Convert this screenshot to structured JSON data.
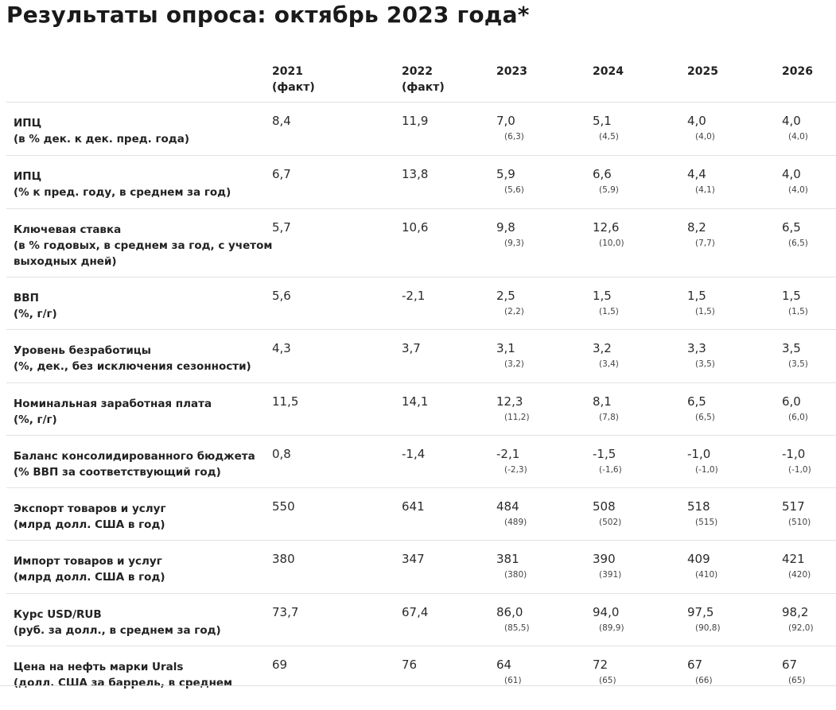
{
  "title": "Результаты опроса: октябрь 2023 года*",
  "columns": [
    {
      "year": "2021",
      "note": "(факт)"
    },
    {
      "year": "2022",
      "note": "(факт)"
    },
    {
      "year": "2023",
      "note": ""
    },
    {
      "year": "2024",
      "note": ""
    },
    {
      "year": "2025",
      "note": ""
    },
    {
      "year": "2026",
      "note": ""
    }
  ],
  "rows": [
    {
      "label": [
        "ИПЦ",
        "(в % дек. к дек. пред. года)"
      ],
      "values": [
        "8,4",
        "11,9",
        "7,0",
        "5,1",
        "4,0",
        "4,0"
      ],
      "prev": [
        "",
        "",
        "(6,3)",
        "(4,5)",
        "(4,0)",
        "(4,0)"
      ]
    },
    {
      "label": [
        "ИПЦ",
        "(% к пред. году, в среднем за год)"
      ],
      "values": [
        "6,7",
        "13,8",
        "5,9",
        "6,6",
        "4,4",
        "4,0"
      ],
      "prev": [
        "",
        "",
        "(5,6)",
        "(5,9)",
        "(4,1)",
        "(4,0)"
      ]
    },
    {
      "label": [
        "Ключевая ставка",
        "(в % годовых, в среднем за год, с учетом",
        "выходных дней)"
      ],
      "values": [
        "5,7",
        "10,6",
        "9,8",
        "12,6",
        "8,2",
        "6,5"
      ],
      "prev": [
        "",
        "",
        "(9,3)",
        "(10,0)",
        "(7,7)",
        "(6,5)"
      ]
    },
    {
      "label": [
        "ВВП",
        "(%, г/г)"
      ],
      "values": [
        "5,6",
        "-2,1",
        "2,5",
        "1,5",
        "1,5",
        "1,5"
      ],
      "prev": [
        "",
        "",
        "(2,2)",
        "(1,5)",
        "(1,5)",
        "(1,5)"
      ]
    },
    {
      "label": [
        "Уровень безработицы",
        "(%, дек., без исключения сезонности)"
      ],
      "values": [
        "4,3",
        "3,7",
        "3,1",
        "3,2",
        "3,3",
        "3,5"
      ],
      "prev": [
        "",
        "",
        "(3,2)",
        "(3,4)",
        "(3,5)",
        "(3,5)"
      ]
    },
    {
      "label": [
        "Номинальная заработная плата",
        "(%, г/г)"
      ],
      "values": [
        "11,5",
        "14,1",
        "12,3",
        "8,1",
        "6,5",
        "6,0"
      ],
      "prev": [
        "",
        "",
        "(11,2)",
        "(7,8)",
        "(6,5)",
        "(6,0)"
      ]
    },
    {
      "label": [
        "Баланс консолидированного бюджета",
        "(% ВВП за соответствующий год)"
      ],
      "values": [
        "0,8",
        "-1,4",
        "-2,1",
        "-1,5",
        "-1,0",
        "-1,0"
      ],
      "prev": [
        "",
        "",
        "(-2,3)",
        "(-1,6)",
        "(-1,0)",
        "(-1,0)"
      ]
    },
    {
      "label": [
        "Экспорт товаров и услуг",
        "(млрд долл. США в год)"
      ],
      "values": [
        "550",
        "641",
        "484",
        "508",
        "518",
        "517"
      ],
      "prev": [
        "",
        "",
        "(489)",
        "(502)",
        "(515)",
        "(510)"
      ]
    },
    {
      "label": [
        "Импорт товаров и услуг",
        "(млрд долл. США в год)"
      ],
      "values": [
        "380",
        "347",
        "381",
        "390",
        "409",
        "421"
      ],
      "prev": [
        "",
        "",
        "(380)",
        "(391)",
        "(410)",
        "(420)"
      ]
    },
    {
      "label": [
        "Курс USD/RUB",
        "(руб. за долл., в среднем за год)"
      ],
      "values": [
        "73,7",
        "67,4",
        "86,0",
        "94,0",
        "97,5",
        "98,2"
      ],
      "prev": [
        "",
        "",
        "(85,5)",
        "(89,9)",
        "(90,8)",
        "(92,0)"
      ]
    },
    {
      "label": [
        "Цена на нефть марки Urals",
        "(долл. США за баррель, в среднем"
      ],
      "values": [
        "69",
        "76",
        "64",
        "72",
        "67",
        "67"
      ],
      "prev": [
        "",
        "",
        "(61)",
        "(65)",
        "(66)",
        "(65)"
      ]
    }
  ]
}
